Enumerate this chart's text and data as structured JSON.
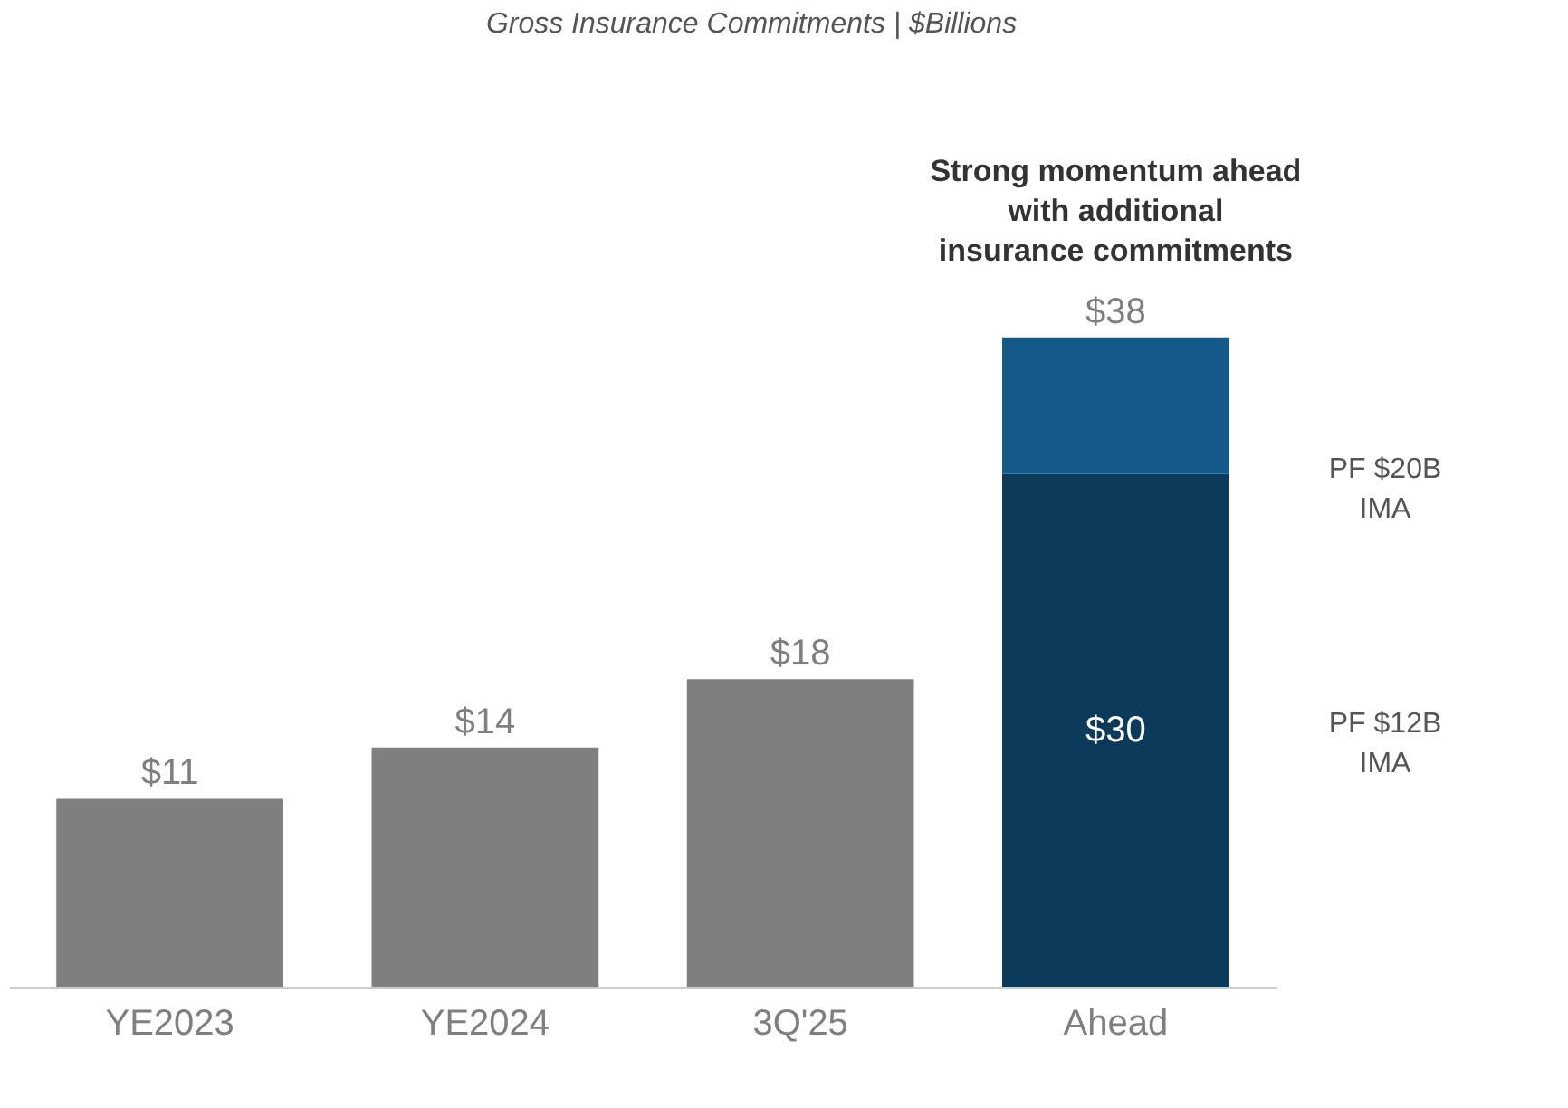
{
  "chart_data": {
    "type": "bar",
    "title": "Gross Insurance Commitments | $Billions",
    "categories": [
      "YE2023",
      "YE2024",
      "3Q'25",
      "Ahead"
    ],
    "stacked": true,
    "series": [
      {
        "colors": [
          "#7f7f7f",
          "#7f7f7f",
          "#7f7f7f",
          "#0c3a5a"
        ],
        "values": [
          11,
          14,
          18,
          30
        ],
        "value_labels": [
          "$11",
          "$14",
          "$18",
          "$30"
        ]
      },
      {
        "color": "#135a8a",
        "values": [
          null,
          null,
          null,
          8
        ]
      }
    ],
    "totals": [
      null,
      null,
      null,
      "$38"
    ],
    "tick_labels": "x",
    "grid": false,
    "annotations": [
      "Strong momentum ahead with additional insurance commitments",
      "PF $12B IMA",
      "PF $20B IMA"
    ]
  }
}
